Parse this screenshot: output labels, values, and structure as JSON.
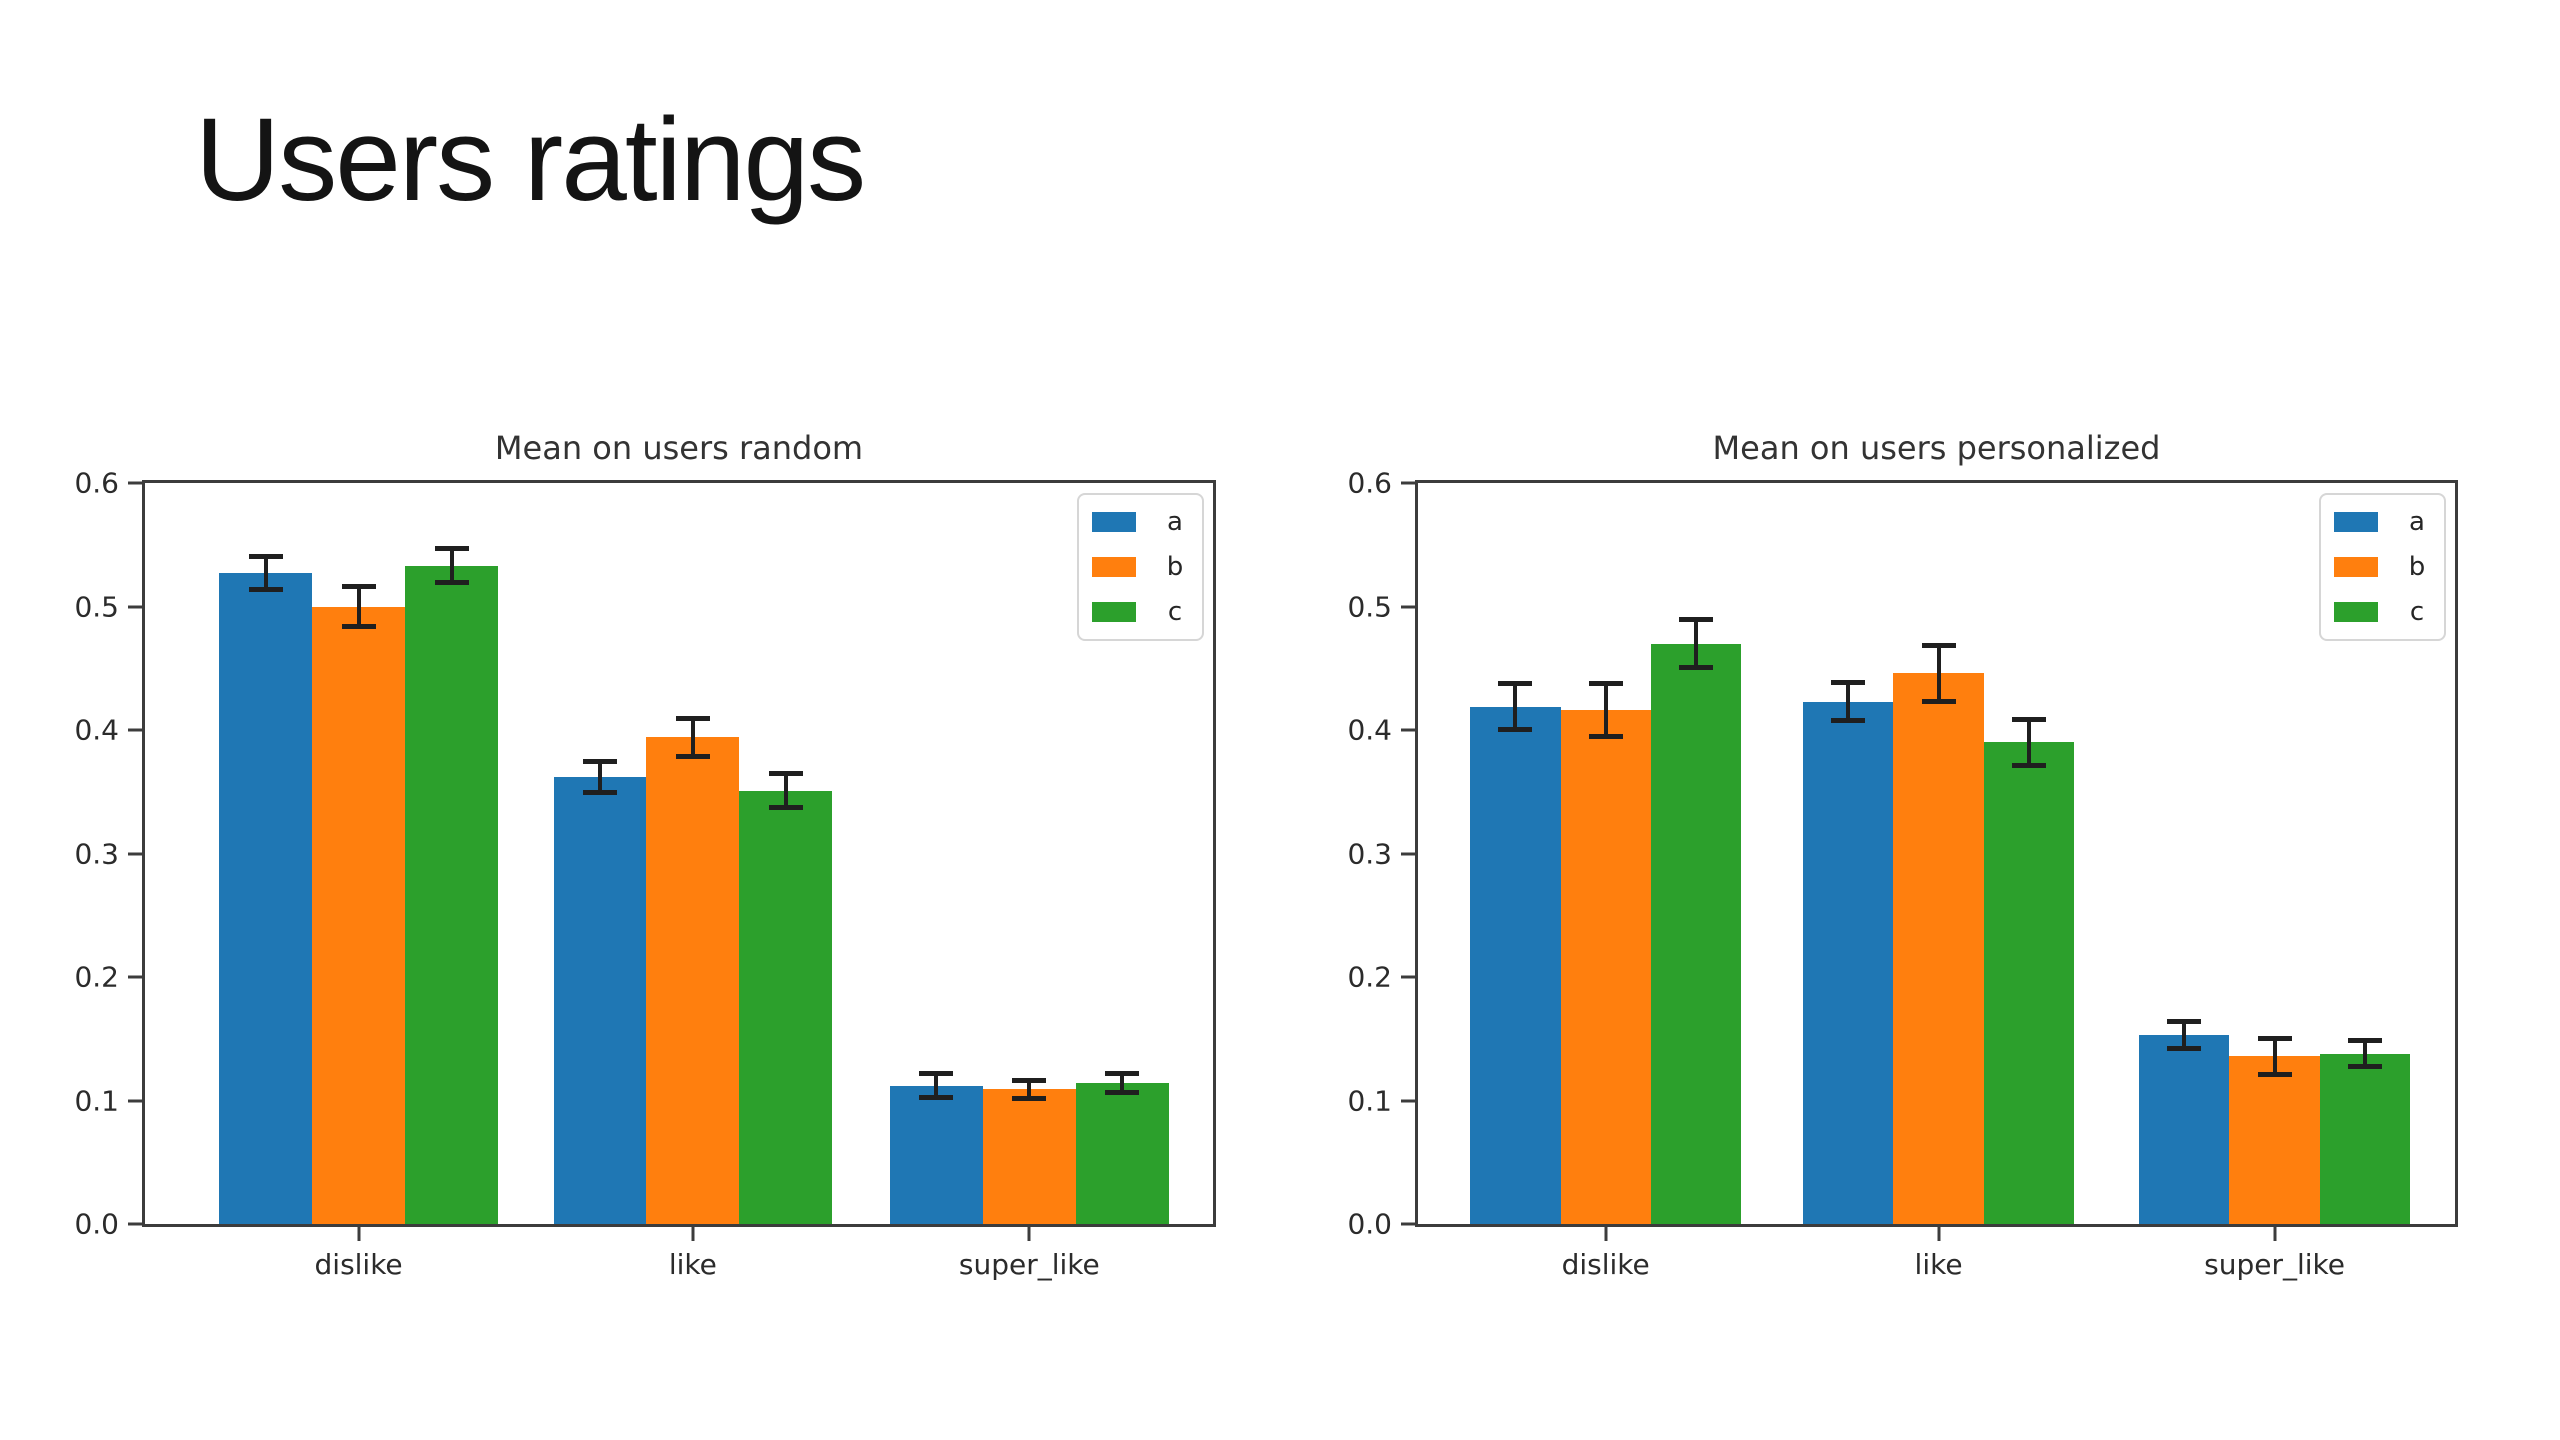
{
  "slide": {
    "title": "Users ratings"
  },
  "colors": {
    "series_a": "#1f77b4",
    "series_b": "#ff7f0e",
    "series_c": "#2ca02c",
    "errorbar": "#1f1f1f",
    "spine": "#3c3c3c",
    "background": "#ffffff"
  },
  "chart_data": [
    {
      "type": "bar",
      "title": "Mean on users random",
      "categories": [
        "dislike",
        "like",
        "super_like"
      ],
      "series": [
        {
          "name": "a",
          "color": "#1f77b4",
          "values": [
            0.527,
            0.362,
            0.112
          ],
          "errors": [
            0.014,
            0.013,
            0.01
          ]
        },
        {
          "name": "b",
          "color": "#ff7f0e",
          "values": [
            0.5,
            0.394,
            0.109
          ],
          "errors": [
            0.017,
            0.016,
            0.008
          ]
        },
        {
          "name": "c",
          "color": "#2ca02c",
          "values": [
            0.533,
            0.351,
            0.114
          ],
          "errors": [
            0.014,
            0.014,
            0.008
          ]
        }
      ],
      "ylim": [
        0.0,
        0.6
      ],
      "yticks": [
        "0.0",
        "0.1",
        "0.2",
        "0.3",
        "0.4",
        "0.5",
        "0.6"
      ],
      "legend": [
        "a",
        "b",
        "c"
      ],
      "legend_position": "top-right",
      "grid": false,
      "error_bars": true
    },
    {
      "type": "bar",
      "title": "Mean on users personalized",
      "categories": [
        "dislike",
        "like",
        "super_like"
      ],
      "series": [
        {
          "name": "a",
          "color": "#1f77b4",
          "values": [
            0.419,
            0.423,
            0.153
          ],
          "errors": [
            0.019,
            0.016,
            0.011
          ]
        },
        {
          "name": "b",
          "color": "#ff7f0e",
          "values": [
            0.416,
            0.446,
            0.136
          ],
          "errors": [
            0.022,
            0.023,
            0.015
          ]
        },
        {
          "name": "c",
          "color": "#2ca02c",
          "values": [
            0.47,
            0.39,
            0.138
          ],
          "errors": [
            0.02,
            0.019,
            0.011
          ]
        }
      ],
      "ylim": [
        0.0,
        0.6
      ],
      "yticks": [
        "0.0",
        "0.1",
        "0.2",
        "0.3",
        "0.4",
        "0.5",
        "0.6"
      ],
      "legend": [
        "a",
        "b",
        "c"
      ],
      "legend_position": "top-right",
      "grid": false,
      "error_bars": true
    }
  ]
}
